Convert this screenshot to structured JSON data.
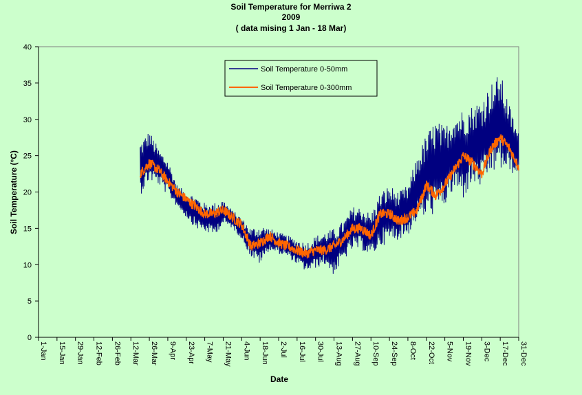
{
  "chart_data": {
    "type": "line",
    "title": "Soil Temperature for Merriwa 2",
    "subtitle": "2009",
    "annotation": "( data mising 1 Jan - 18 Mar)",
    "xlabel": "Date",
    "ylabel": "Soil Temperature (°C)",
    "ylim": [
      0,
      40
    ],
    "yticks": [
      0,
      5,
      10,
      15,
      20,
      25,
      30,
      35,
      40
    ],
    "xlim": [
      "2009-01-01",
      "2009-12-31"
    ],
    "xtick_labels": [
      "1-Jan",
      "15-Jan",
      "29-Jan",
      "12-Feb",
      "26-Feb",
      "12-Mar",
      "26-Mar",
      "9-Apr",
      "23-Apr",
      "7-May",
      "21-May",
      "4-Jun",
      "18-Jun",
      "2-Jul",
      "16-Jul",
      "30-Jul",
      "13-Aug",
      "27-Aug",
      "10-Sep",
      "24-Sep",
      "8-Oct",
      "22-Oct",
      "5-Nov",
      "19-Nov",
      "3-Dec",
      "17-Dec",
      "31-Dec"
    ],
    "grid": false,
    "legend_position": "top-center",
    "colors": {
      "background": "#ccffcc",
      "series_shallow": "#000080",
      "series_deep": "#ff6600"
    },
    "series": [
      {
        "name": "Soil Temperature 0-50mm",
        "x": [
          "2009-03-19",
          "2009-03-26",
          "2009-04-02",
          "2009-04-09",
          "2009-04-16",
          "2009-04-23",
          "2009-04-30",
          "2009-05-07",
          "2009-05-14",
          "2009-05-21",
          "2009-05-28",
          "2009-06-04",
          "2009-06-11",
          "2009-06-18",
          "2009-06-25",
          "2009-07-02",
          "2009-07-09",
          "2009-07-16",
          "2009-07-23",
          "2009-07-30",
          "2009-08-06",
          "2009-08-13",
          "2009-08-20",
          "2009-08-27",
          "2009-09-03",
          "2009-09-10",
          "2009-09-17",
          "2009-09-24",
          "2009-10-01",
          "2009-10-08",
          "2009-10-15",
          "2009-10-22",
          "2009-10-29",
          "2009-11-05",
          "2009-11-12",
          "2009-11-19",
          "2009-11-26",
          "2009-12-03",
          "2009-12-10",
          "2009-12-17",
          "2009-12-24",
          "2009-12-31"
        ],
        "y_min": [
          19.5,
          21.5,
          21.0,
          19.5,
          18.0,
          16.5,
          15.0,
          14.5,
          14.0,
          15.5,
          15.0,
          13.5,
          11.0,
          10.0,
          12.0,
          11.5,
          11.0,
          10.0,
          9.0,
          9.5,
          10.0,
          8.5,
          10.5,
          12.0,
          12.0,
          11.0,
          12.5,
          13.0,
          13.5,
          14.0,
          16.0,
          16.5,
          17.0,
          18.0,
          20.0,
          19.0,
          21.0,
          20.5,
          22.5,
          23.0,
          22.5,
          22.5
        ],
        "y_max": [
          27.0,
          28.5,
          26.0,
          24.5,
          21.0,
          20.0,
          19.5,
          18.5,
          18.5,
          19.0,
          17.5,
          16.5,
          15.0,
          15.5,
          15.0,
          14.5,
          14.0,
          13.5,
          13.0,
          14.0,
          14.5,
          15.0,
          16.0,
          18.0,
          18.0,
          17.0,
          20.0,
          21.0,
          20.0,
          21.0,
          25.0,
          28.0,
          30.0,
          29.0,
          31.0,
          31.5,
          32.0,
          33.0,
          35.0,
          36.5,
          32.0,
          28.0
        ]
      },
      {
        "name": "Soil Temperature  0-300mm",
        "x": [
          "2009-03-19",
          "2009-03-26",
          "2009-04-02",
          "2009-04-09",
          "2009-04-16",
          "2009-04-23",
          "2009-04-30",
          "2009-05-07",
          "2009-05-14",
          "2009-05-21",
          "2009-05-28",
          "2009-06-04",
          "2009-06-11",
          "2009-06-18",
          "2009-06-25",
          "2009-07-02",
          "2009-07-09",
          "2009-07-16",
          "2009-07-23",
          "2009-07-30",
          "2009-08-06",
          "2009-08-13",
          "2009-08-20",
          "2009-08-27",
          "2009-09-03",
          "2009-09-10",
          "2009-09-17",
          "2009-09-24",
          "2009-10-01",
          "2009-10-08",
          "2009-10-15",
          "2009-10-22",
          "2009-10-29",
          "2009-11-05",
          "2009-11-12",
          "2009-11-19",
          "2009-11-26",
          "2009-12-03",
          "2009-12-10",
          "2009-12-17",
          "2009-12-24",
          "2009-12-31"
        ],
        "y": [
          22.5,
          24.0,
          23.0,
          21.5,
          20.0,
          19.0,
          18.0,
          17.0,
          17.0,
          17.5,
          16.5,
          15.5,
          12.5,
          13.0,
          14.0,
          13.0,
          12.5,
          12.0,
          11.5,
          12.0,
          12.0,
          12.5,
          13.5,
          15.0,
          15.0,
          14.0,
          17.0,
          17.0,
          16.0,
          16.5,
          17.5,
          21.0,
          19.5,
          21.0,
          23.0,
          25.0,
          24.0,
          22.5,
          26.0,
          27.5,
          26.0,
          23.5
        ]
      }
    ]
  }
}
